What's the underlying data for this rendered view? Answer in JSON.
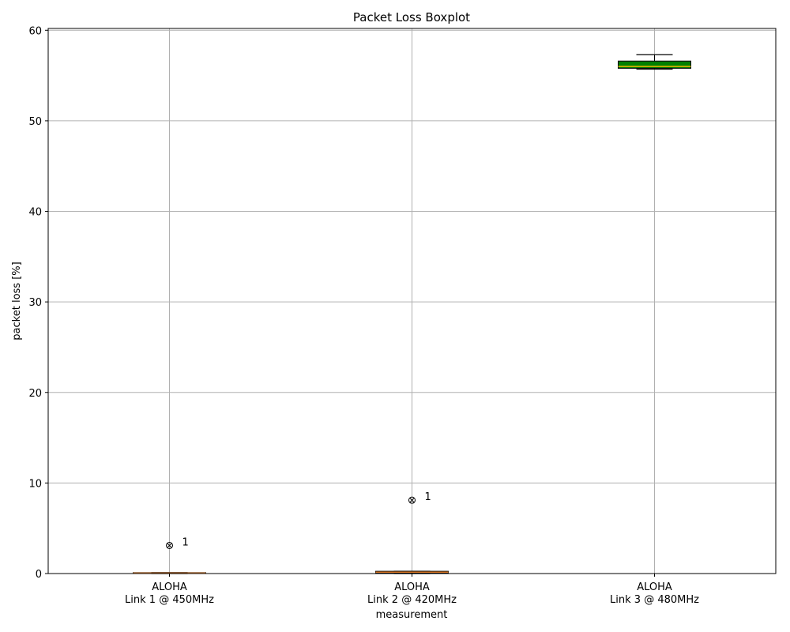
{
  "chart_data": {
    "type": "boxplot",
    "title": "Packet Loss Boxplot",
    "xlabel": "measurement",
    "ylabel": "packet loss [%]",
    "ylim": [
      0,
      60.2
    ],
    "yticks": [
      0,
      10,
      20,
      30,
      40,
      50,
      60
    ],
    "grid": true,
    "categories": [
      [
        "ALOHA",
        "Link 1 @ 450MHz"
      ],
      [
        "ALOHA",
        "Link 2 @ 420MHz"
      ],
      [
        "ALOHA",
        "Link 3 @ 480MHz"
      ]
    ],
    "boxes": [
      {
        "whisker_low": 0.0,
        "q1": 0.0,
        "median": 0.05,
        "q3": 0.1,
        "whisker_high": 0.1,
        "box_color": "#ffffff",
        "median_color": "#e07b28",
        "outliers": [
          {
            "value": 3.1,
            "label": "1"
          }
        ]
      },
      {
        "whisker_low": 0.0,
        "q1": 0.05,
        "median": 0.15,
        "q3": 0.25,
        "whisker_high": 0.25,
        "box_color": "#ffffff",
        "median_color": "#e07b28",
        "outliers": [
          {
            "value": 8.1,
            "label": "1"
          }
        ]
      },
      {
        "whisker_low": 55.7,
        "q1": 55.8,
        "median": 56.0,
        "q3": 56.6,
        "whisker_high": 57.3,
        "box_color": "#008000",
        "median_color": "#e6b800",
        "outliers": []
      }
    ]
  }
}
